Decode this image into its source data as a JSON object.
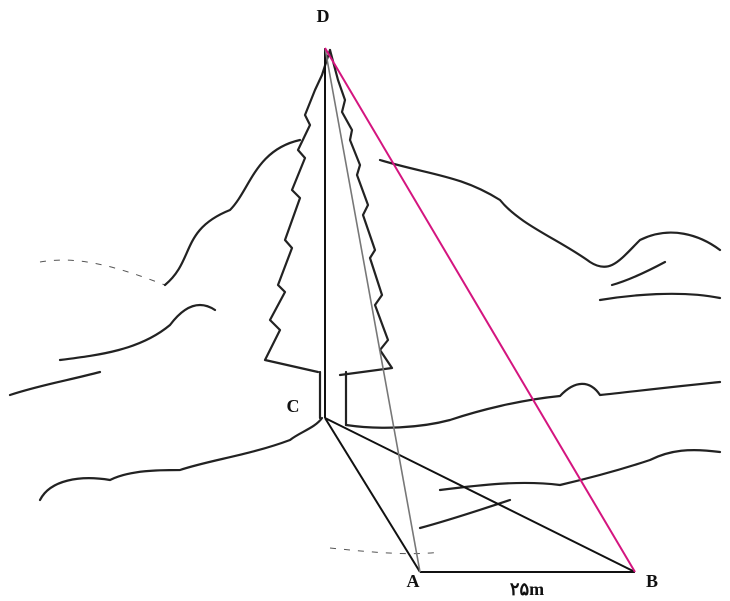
{
  "points": {
    "D": "D",
    "C": "C",
    "A": "A",
    "B": "B"
  },
  "segments": {
    "AB": "۲۵m"
  }
}
